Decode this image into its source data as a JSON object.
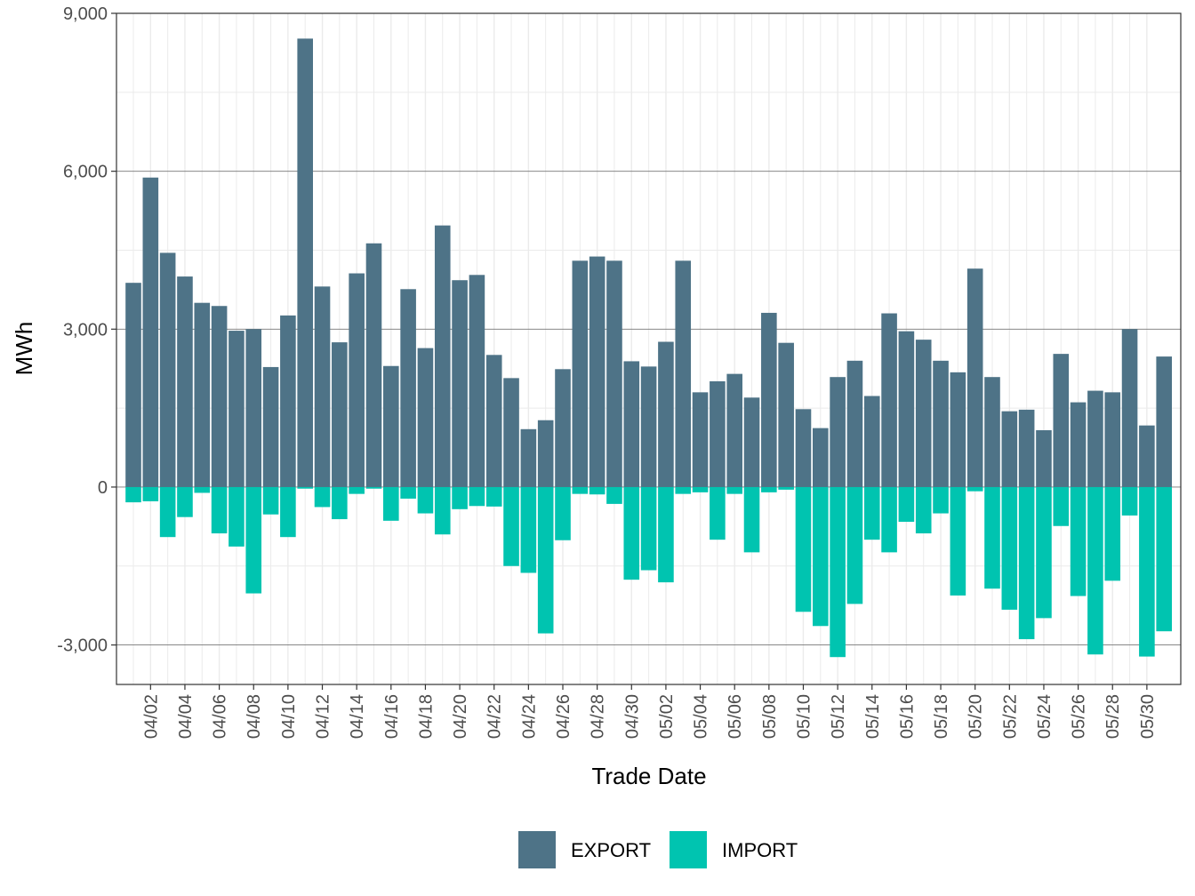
{
  "chart_data": {
    "type": "bar",
    "stacked": true,
    "xlabel": "Trade Date",
    "ylabel": "MWh",
    "ylim": [
      -3750,
      9000
    ],
    "yticks": [
      -3000,
      0,
      3000,
      6000,
      9000
    ],
    "ytick_labels": [
      "-3,000",
      "0",
      "3,000",
      "6,000",
      "9,000"
    ],
    "grid": true,
    "legend_position": "bottom",
    "categories": [
      "04/01",
      "04/02",
      "04/03",
      "04/04",
      "04/05",
      "04/06",
      "04/07",
      "04/08",
      "04/09",
      "04/10",
      "04/11",
      "04/12",
      "04/13",
      "04/14",
      "04/15",
      "04/16",
      "04/17",
      "04/18",
      "04/19",
      "04/20",
      "04/21",
      "04/22",
      "04/23",
      "04/24",
      "04/25",
      "04/26",
      "04/27",
      "04/28",
      "04/29",
      "04/30",
      "05/01",
      "05/02",
      "05/03",
      "05/04",
      "05/05",
      "05/06",
      "05/07",
      "05/08",
      "05/09",
      "05/10",
      "05/11",
      "05/12",
      "05/13",
      "05/14",
      "05/15",
      "05/16",
      "05/17",
      "05/18",
      "05/19",
      "05/20",
      "05/21",
      "05/22",
      "05/23",
      "05/24",
      "05/25",
      "05/26",
      "05/27",
      "05/28",
      "05/29",
      "05/30",
      "05/31"
    ],
    "xtick_labels": [
      "04/02",
      "04/04",
      "04/06",
      "04/08",
      "04/10",
      "04/12",
      "04/14",
      "04/16",
      "04/18",
      "04/20",
      "04/22",
      "04/24",
      "04/26",
      "04/28",
      "04/30",
      "05/02",
      "05/04",
      "05/06",
      "05/08",
      "05/10",
      "05/12",
      "05/14",
      "05/16",
      "05/18",
      "05/20",
      "05/22",
      "05/24",
      "05/26",
      "05/28",
      "05/30"
    ],
    "series": [
      {
        "name": "EXPORT",
        "color": "#4e7387",
        "values": [
          3880,
          5880,
          4450,
          4000,
          3500,
          3440,
          2970,
          3000,
          2280,
          3260,
          8520,
          3810,
          2750,
          4060,
          4630,
          2300,
          3760,
          2640,
          4970,
          3930,
          4030,
          2510,
          2070,
          1100,
          1270,
          2240,
          4300,
          4380,
          4300,
          2390,
          2290,
          2760,
          4300,
          1800,
          2010,
          2150,
          1700,
          3310,
          2740,
          1480,
          1120,
          2090,
          2400,
          1730,
          3300,
          2960,
          2800,
          2400,
          2180,
          4150,
          2090,
          1440,
          1470,
          1080,
          2530,
          1610,
          1830,
          1800,
          3000,
          1170,
          2480
        ]
      },
      {
        "name": "IMPORT",
        "color": "#00c4b0",
        "values": [
          -290,
          -270,
          -950,
          -570,
          -110,
          -880,
          -1130,
          -2020,
          -520,
          -950,
          -30,
          -380,
          -610,
          -130,
          -30,
          -640,
          -220,
          -500,
          -900,
          -420,
          -360,
          -370,
          -1500,
          -1630,
          -2780,
          -1010,
          -130,
          -140,
          -320,
          -1760,
          -1580,
          -1810,
          -130,
          -100,
          -1000,
          -130,
          -1240,
          -100,
          -50,
          -2370,
          -2640,
          -3230,
          -2220,
          -1000,
          -1240,
          -660,
          -880,
          -500,
          -2060,
          -80,
          -1930,
          -2330,
          -2890,
          -2490,
          -740,
          -2070,
          -3180,
          -1780,
          -540,
          -3220,
          -2740
        ]
      }
    ]
  }
}
